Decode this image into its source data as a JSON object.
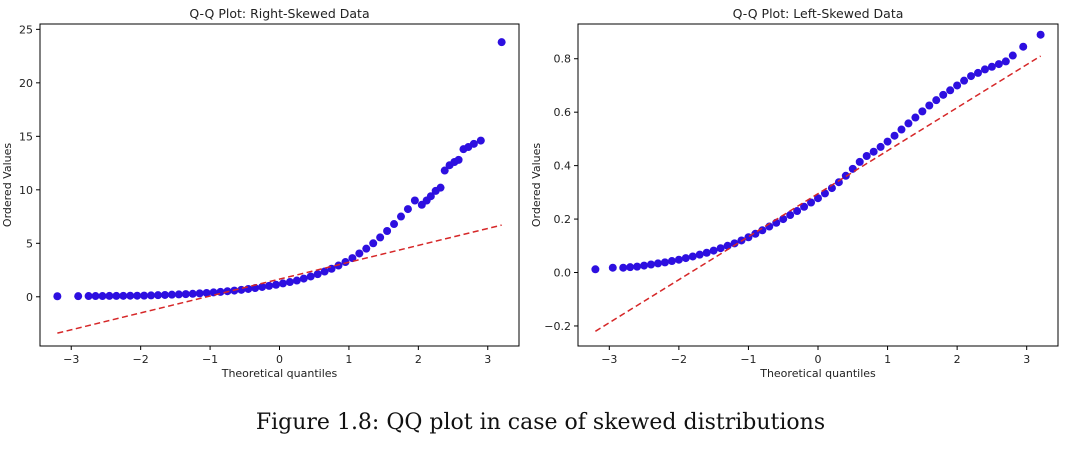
{
  "caption": "Figure 1.8: QQ plot in case of skewed distributions",
  "colors": {
    "points": "#2d0fe0",
    "fit_line": "#d62728",
    "axes": "#000000"
  },
  "chart_data": [
    {
      "type": "scatter",
      "title": "Q-Q Plot: Right-Skewed Data",
      "xlabel": "Theoretical quantiles",
      "ylabel": "Ordered Values",
      "xlim": [
        -3.45,
        3.45
      ],
      "ylim": [
        -4.6,
        25.5
      ],
      "xticks": [
        -3,
        -2,
        -1,
        0,
        1,
        2,
        3
      ],
      "yticks": [
        0,
        5,
        10,
        15,
        20,
        25
      ],
      "grid": false,
      "fit_line": {
        "x": [
          -3.2,
          3.2
        ],
        "y": [
          -3.4,
          6.7
        ]
      },
      "points": {
        "x": [
          -3.2,
          -2.9,
          -2.75,
          -2.65,
          -2.55,
          -2.45,
          -2.35,
          -2.25,
          -2.15,
          -2.05,
          -1.95,
          -1.85,
          -1.75,
          -1.65,
          -1.55,
          -1.45,
          -1.35,
          -1.25,
          -1.15,
          -1.05,
          -0.95,
          -0.85,
          -0.75,
          -0.65,
          -0.55,
          -0.45,
          -0.35,
          -0.25,
          -0.15,
          -0.05,
          0.05,
          0.15,
          0.25,
          0.35,
          0.45,
          0.55,
          0.65,
          0.75,
          0.85,
          0.95,
          1.05,
          1.15,
          1.25,
          1.35,
          1.45,
          1.55,
          1.65,
          1.75,
          1.85,
          1.95,
          2.05,
          2.12,
          2.18,
          2.25,
          2.32,
          2.38,
          2.45,
          2.52,
          2.58,
          2.65,
          2.72,
          2.8,
          2.9,
          3.2
        ],
        "y": [
          0.05,
          0.06,
          0.07,
          0.07,
          0.07,
          0.08,
          0.08,
          0.09,
          0.1,
          0.1,
          0.11,
          0.13,
          0.15,
          0.17,
          0.2,
          0.22,
          0.25,
          0.28,
          0.32,
          0.36,
          0.41,
          0.46,
          0.52,
          0.58,
          0.65,
          0.73,
          0.82,
          0.92,
          1.02,
          1.12,
          1.25,
          1.38,
          1.52,
          1.7,
          1.9,
          2.12,
          2.36,
          2.62,
          2.92,
          3.25,
          3.62,
          4.05,
          4.5,
          5.0,
          5.55,
          6.15,
          6.8,
          7.5,
          8.2,
          9.0,
          8.6,
          9.0,
          9.4,
          9.9,
          10.2,
          11.8,
          12.3,
          12.6,
          12.8,
          13.8,
          14.0,
          14.3,
          14.6,
          23.8
        ]
      }
    },
    {
      "type": "scatter",
      "title": "Q-Q Plot: Left-Skewed Data",
      "xlabel": "Theoretical quantiles",
      "ylabel": "Ordered Values",
      "xlim": [
        -3.45,
        3.45
      ],
      "ylim": [
        -0.275,
        0.93
      ],
      "xticks": [
        -3,
        -2,
        -1,
        0,
        1,
        2,
        3
      ],
      "yticks": [
        -0.2,
        0.0,
        0.2,
        0.4,
        0.6,
        0.8
      ],
      "grid": false,
      "fit_line": {
        "x": [
          -3.2,
          3.2
        ],
        "y": [
          -0.22,
          0.81
        ]
      },
      "points": {
        "x": [
          -3.2,
          -2.95,
          -2.8,
          -2.7,
          -2.6,
          -2.5,
          -2.4,
          -2.3,
          -2.2,
          -2.1,
          -2.0,
          -1.9,
          -1.8,
          -1.7,
          -1.6,
          -1.5,
          -1.4,
          -1.3,
          -1.2,
          -1.1,
          -1.0,
          -0.9,
          -0.8,
          -0.7,
          -0.6,
          -0.5,
          -0.4,
          -0.3,
          -0.2,
          -0.1,
          0.0,
          0.1,
          0.2,
          0.3,
          0.4,
          0.5,
          0.6,
          0.7,
          0.8,
          0.9,
          1.0,
          1.1,
          1.2,
          1.3,
          1.4,
          1.5,
          1.6,
          1.7,
          1.8,
          1.9,
          2.0,
          2.1,
          2.2,
          2.3,
          2.4,
          2.5,
          2.6,
          2.7,
          2.8,
          2.95,
          3.2
        ],
        "y": [
          0.012,
          0.018,
          0.018,
          0.02,
          0.022,
          0.026,
          0.03,
          0.034,
          0.038,
          0.043,
          0.048,
          0.054,
          0.06,
          0.067,
          0.074,
          0.082,
          0.091,
          0.1,
          0.109,
          0.12,
          0.132,
          0.145,
          0.158,
          0.172,
          0.186,
          0.2,
          0.215,
          0.23,
          0.246,
          0.262,
          0.278,
          0.296,
          0.316,
          0.338,
          0.362,
          0.388,
          0.414,
          0.436,
          0.452,
          0.47,
          0.49,
          0.512,
          0.535,
          0.558,
          0.58,
          0.603,
          0.625,
          0.645,
          0.665,
          0.682,
          0.7,
          0.718,
          0.735,
          0.747,
          0.76,
          0.77,
          0.78,
          0.79,
          0.812,
          0.845,
          0.89
        ]
      }
    }
  ]
}
